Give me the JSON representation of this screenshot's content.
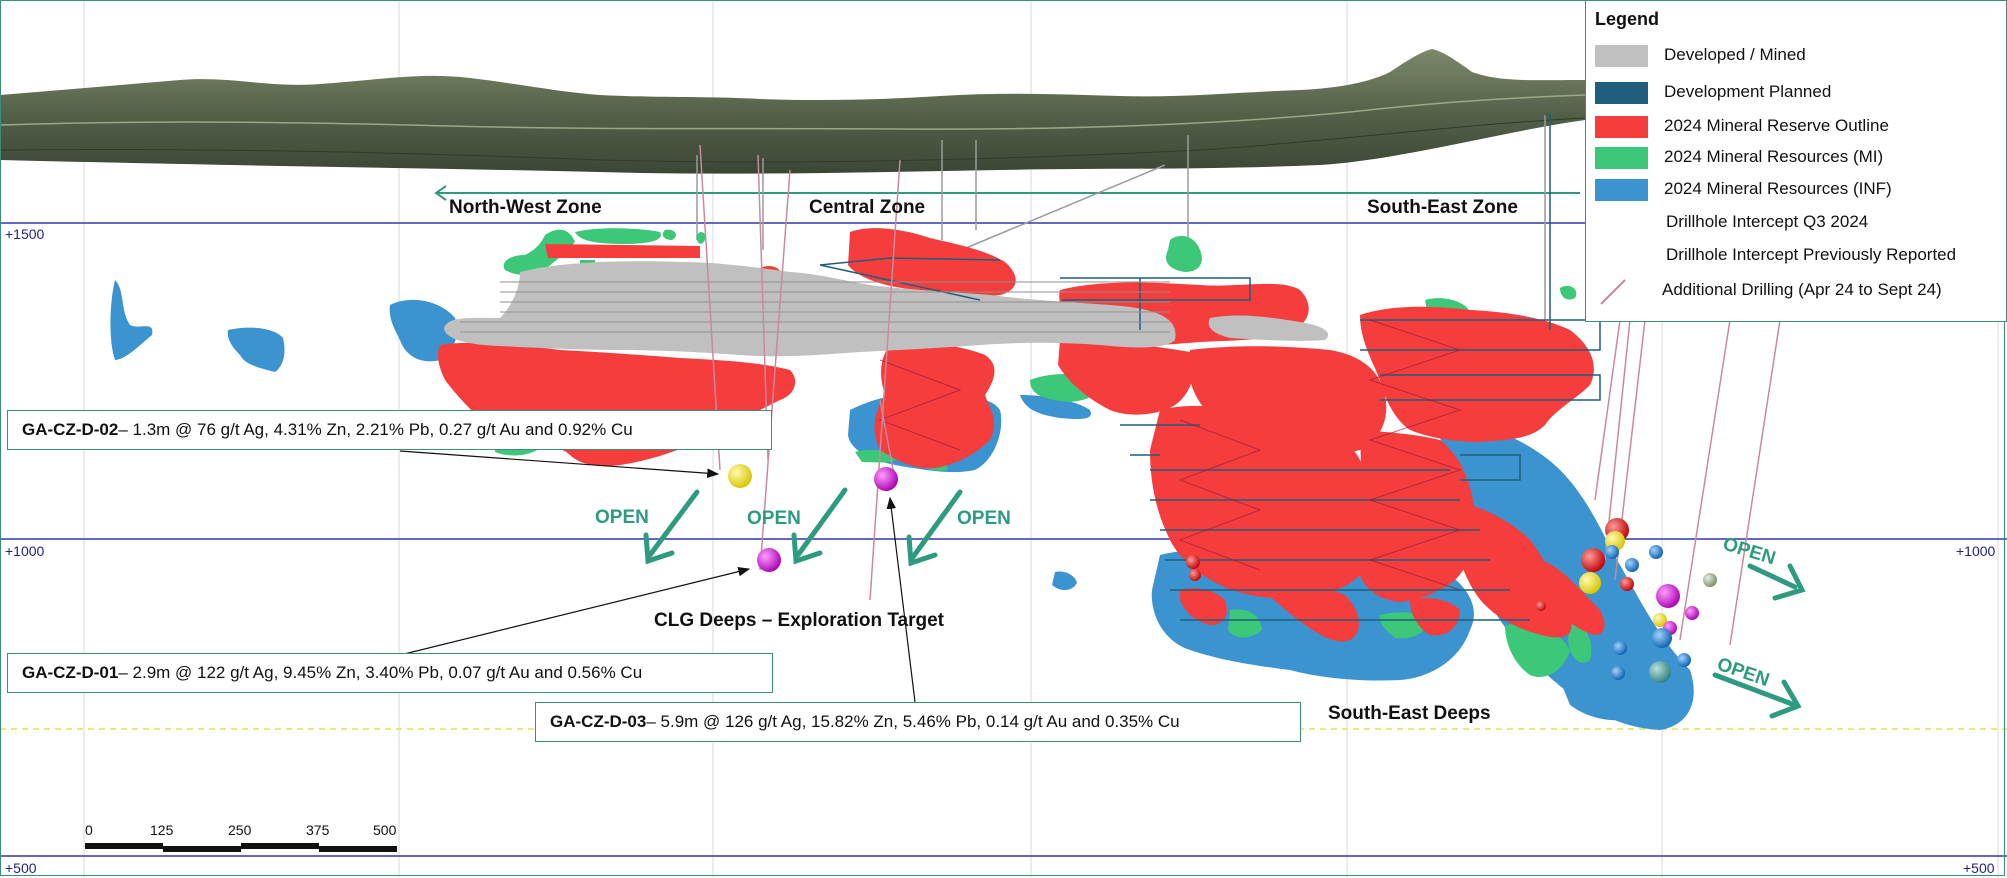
{
  "elevation_labels": {
    "left_1500": "+1500",
    "left_1000": "+1000",
    "right_1000": "+1000",
    "left_500": "+500",
    "right_500": "+500"
  },
  "zones": {
    "north_west": "North-West Zone",
    "central": "Central Zone",
    "south_east": "South-East Zone",
    "clg_deeps": "CLG Deeps – Exploration Target",
    "south_east_deeps": "South-East Deeps"
  },
  "open_labels": [
    "OPEN",
    "OPEN",
    "OPEN",
    "OPEN",
    "OPEN"
  ],
  "callouts": [
    {
      "hole": "GA-CZ-D-02",
      "text": " – 1.3m @ 76 g/t Ag, 4.31% Zn, 2.21% Pb, 0.27 g/t Au and 0.92% Cu"
    },
    {
      "hole": "GA-CZ-D-01",
      "text": " – 2.9m @ 122 g/t Ag, 9.45% Zn, 3.40% Pb, 0.07 g/t Au and 0.56% Cu"
    },
    {
      "hole": "GA-CZ-D-03",
      "text": " – 5.9m @ 126 g/t Ag, 15.82% Zn, 5.46% Pb, 0.14 g/t Au and 0.35% Cu"
    }
  ],
  "scale_bar": {
    "ticks": [
      "0",
      "125",
      "250",
      "375",
      "500"
    ]
  },
  "legend": {
    "title": "Legend",
    "items": [
      {
        "label": "Developed / Mined",
        "color": "#c0c0c0",
        "icon": "grey-swatch"
      },
      {
        "label": "Development Planned",
        "color": "#1e5f7d",
        "icon": "dark-blue-swatch"
      },
      {
        "label": "2024 Mineral Reserve Outline",
        "color": "#f53d3d",
        "icon": "red-swatch"
      },
      {
        "label": "2024 Mineral Resources (MI)",
        "color": "#3cc878",
        "icon": "green-swatch"
      },
      {
        "label": "2024 Mineral Resources (INF)",
        "color": "#3b93d0",
        "icon": "blue-swatch"
      },
      {
        "label": "Drillhole Intercept Q3 2024",
        "icon": "large-sphere-cluster-icon"
      },
      {
        "label": "Drillhole Intercept Previously Reported",
        "icon": "small-sphere-cluster-icon"
      },
      {
        "label": "Additional Drilling (Apr 24 to Sept 24)",
        "color": "#c98a9a",
        "icon": "drill-line-icon"
      }
    ]
  },
  "colors": {
    "mined": "#c0c0c0",
    "planned": "#1e5f7d",
    "reserve": "#f53d3d",
    "resource_mi": "#3cc878",
    "resource_inf": "#3b93d0",
    "open_arrow": "#2e9b80",
    "topography": "#5b6b4e",
    "grid": "#2d2d9a"
  }
}
